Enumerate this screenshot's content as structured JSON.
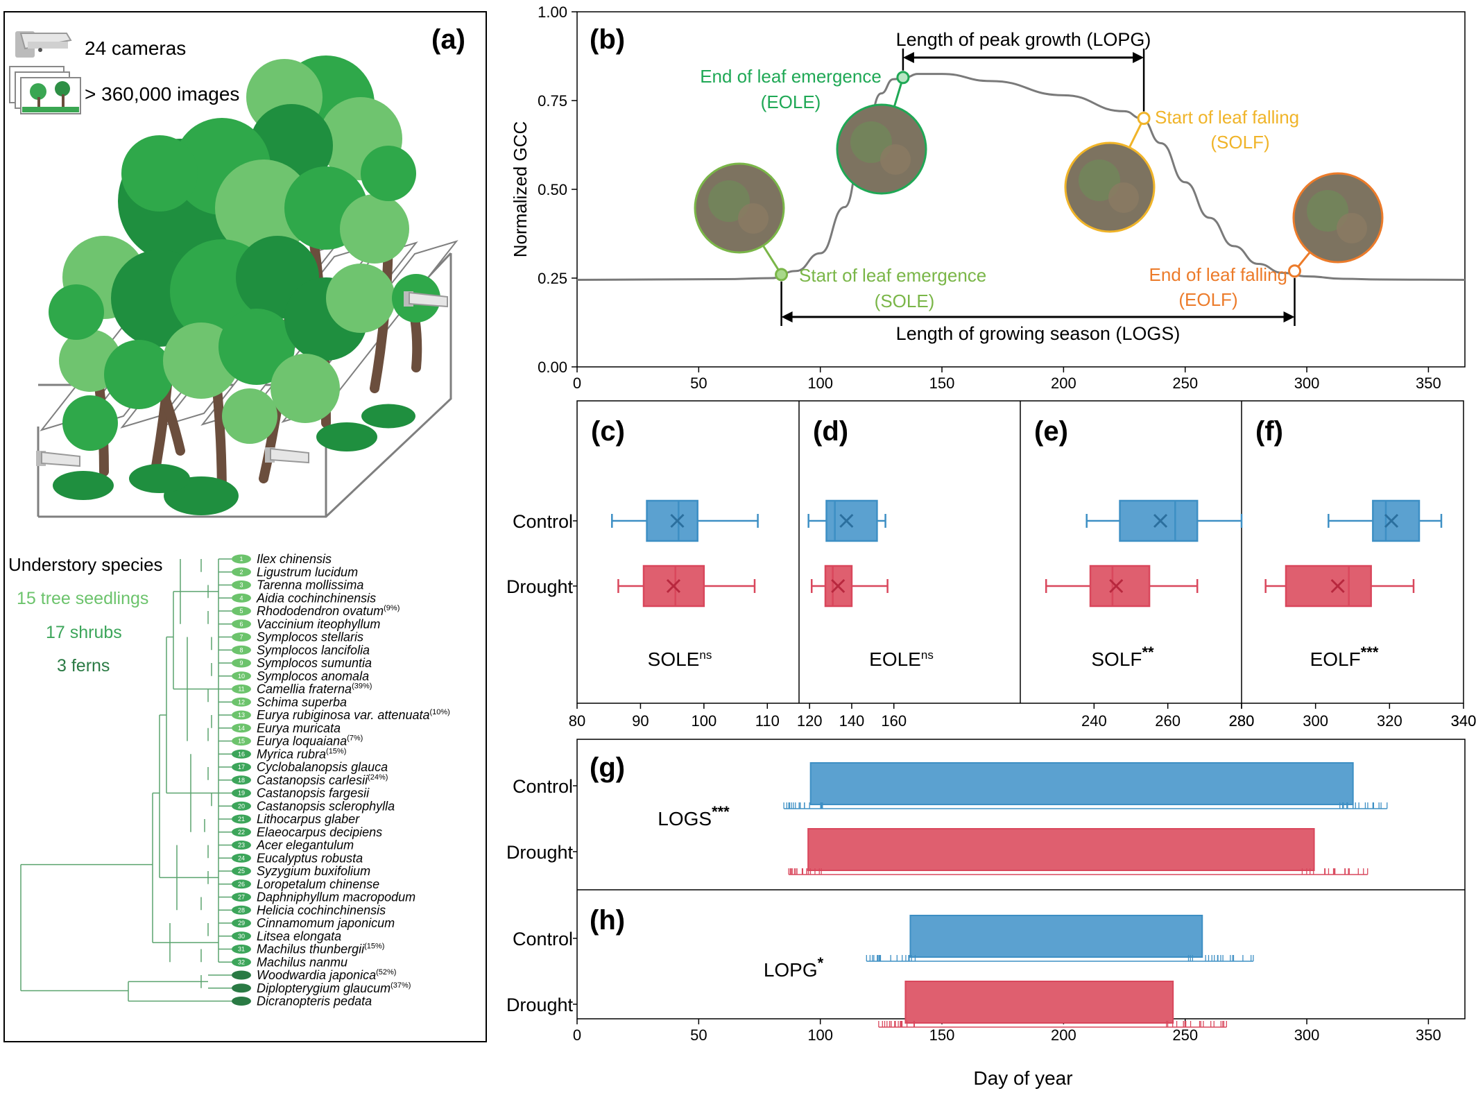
{
  "panel_a": {
    "label": "(a)",
    "cameras_text": "24 cameras",
    "images_text": "> 360,000 images",
    "understory_title": "Understory species",
    "group_trees": "15 tree seedlings",
    "group_shrubs": "17 shrubs",
    "group_ferns": "3 ferns",
    "colors": {
      "tree": "#6cc36c",
      "shrub": "#3ca55a",
      "fern": "#2a7a44",
      "branch": "#5aa36e",
      "leaf_dark": "#1f8f3f",
      "leaf_mid": "#2fa84a",
      "leaf_light": "#6fc46f",
      "trunk": "#6b4e3d"
    },
    "species": [
      {
        "n": "1",
        "name": "Ilex chinensis",
        "pct": ""
      },
      {
        "n": "2",
        "name": "Ligustrum lucidum",
        "pct": ""
      },
      {
        "n": "3",
        "name": "Tarenna mollissima",
        "pct": ""
      },
      {
        "n": "4",
        "name": "Aidia cochinchinensis",
        "pct": ""
      },
      {
        "n": "5",
        "name": "Rhododendron ovatum",
        "pct": "(9%)"
      },
      {
        "n": "6",
        "name": "Vaccinium iteophyllum",
        "pct": ""
      },
      {
        "n": "7",
        "name": "Symplocos stellaris",
        "pct": ""
      },
      {
        "n": "8",
        "name": "Symplocos lancifolia",
        "pct": ""
      },
      {
        "n": "9",
        "name": "Symplocos sumuntia",
        "pct": ""
      },
      {
        "n": "10",
        "name": "Symplocos anomala",
        "pct": ""
      },
      {
        "n": "11",
        "name": "Camellia fraterna",
        "pct": "(39%)"
      },
      {
        "n": "12",
        "name": "Schima superba",
        "pct": ""
      },
      {
        "n": "13",
        "name": "Eurya rubiginosa var. attenuata",
        "pct": "(10%)"
      },
      {
        "n": "14",
        "name": "Eurya muricata",
        "pct": ""
      },
      {
        "n": "15",
        "name": "Eurya loquaiana",
        "pct": "(7%)"
      },
      {
        "n": "16",
        "name": "Myrica rubra",
        "pct": "(15%)"
      },
      {
        "n": "17",
        "name": "Cyclobalanopsis glauca",
        "pct": ""
      },
      {
        "n": "18",
        "name": "Castanopsis carlesii",
        "pct": "(24%)"
      },
      {
        "n": "19",
        "name": "Castanopsis fargesii",
        "pct": ""
      },
      {
        "n": "20",
        "name": "Castanopsis sclerophylla",
        "pct": ""
      },
      {
        "n": "21",
        "name": "Lithocarpus glaber",
        "pct": ""
      },
      {
        "n": "22",
        "name": "Elaeocarpus decipiens",
        "pct": ""
      },
      {
        "n": "23",
        "name": "Acer elegantulum",
        "pct": ""
      },
      {
        "n": "24",
        "name": "Eucalyptus robusta",
        "pct": ""
      },
      {
        "n": "25",
        "name": "Syzygium buxifolium",
        "pct": ""
      },
      {
        "n": "26",
        "name": "Loropetalum chinense",
        "pct": ""
      },
      {
        "n": "27",
        "name": "Daphniphyllum macropodum",
        "pct": ""
      },
      {
        "n": "28",
        "name": "Helicia cochinchinensis",
        "pct": ""
      },
      {
        "n": "29",
        "name": "Cinnamomum japonicum",
        "pct": ""
      },
      {
        "n": "30",
        "name": "Litsea elongata",
        "pct": ""
      },
      {
        "n": "31",
        "name": "Machilus thunbergii",
        "pct": "(15%)"
      },
      {
        "n": "32",
        "name": "Machilus nanmu",
        "pct": ""
      },
      {
        "n": "",
        "name": "Woodwardia japonica",
        "pct": "(52%)"
      },
      {
        "n": "",
        "name": "Diplopterygium glaucum",
        "pct": "(37%)"
      },
      {
        "n": "",
        "name": "Dicranopteris pedata",
        "pct": ""
      }
    ]
  },
  "chart_data": [
    {
      "panel": "(b)",
      "type": "line",
      "ylabel": "Normalized GCC",
      "xlim": [
        0,
        365
      ],
      "ylim": [
        0,
        1
      ],
      "xticks": [
        0,
        50,
        100,
        150,
        200,
        250,
        300,
        350
      ],
      "yticks": [
        "0.00",
        "0.25",
        "0.50",
        "0.75",
        "1.00"
      ],
      "curve": {
        "x": [
          0,
          60,
          80,
          90,
          100,
          110,
          118,
          125,
          130,
          135,
          140,
          150,
          170,
          200,
          225,
          232,
          240,
          250,
          260,
          270,
          280,
          290,
          300,
          315,
          330,
          365
        ],
        "y": [
          0.245,
          0.247,
          0.25,
          0.27,
          0.32,
          0.45,
          0.64,
          0.77,
          0.81,
          0.815,
          0.825,
          0.825,
          0.805,
          0.765,
          0.72,
          0.7,
          0.63,
          0.52,
          0.42,
          0.34,
          0.29,
          0.265,
          0.255,
          0.248,
          0.246,
          0.245
        ]
      },
      "points": [
        {
          "key": "sole",
          "x": 84,
          "y": 0.26,
          "label1": "Start of leaf emergence",
          "label2": "(SOLE)",
          "color": "#7ab648"
        },
        {
          "key": "eole",
          "x": 134,
          "y": 0.815,
          "label1": "End of leaf emergence",
          "label2": "(EOLE)",
          "color": "#1fa855"
        },
        {
          "key": "solf",
          "x": 233,
          "y": 0.7,
          "label1": "Start of leaf falling",
          "label2": "(SOLF)",
          "color": "#f0b429"
        },
        {
          "key": "eolf",
          "x": 295,
          "y": 0.27,
          "label1": "End of leaf falling",
          "label2": "(EOLF)",
          "color": "#ec7b2a"
        }
      ],
      "lopg_label": "Length of peak growth (LOPG)",
      "logs_label": "Length of growing season (LOGS)"
    },
    {
      "panel": "(c)",
      "type": "box",
      "metric_label": "SOLE",
      "sig": "ns",
      "sig_style": "sup-small",
      "xlim": [
        80,
        115
      ],
      "xticks": [
        80,
        90,
        100,
        110
      ],
      "series": [
        {
          "name": "Control",
          "whisker_lo": 85.5,
          "q1": 91,
          "median": 96,
          "q3": 99,
          "whisker_hi": 108.5,
          "mean": 95.8
        },
        {
          "name": "Drought",
          "whisker_lo": 86.5,
          "q1": 90.5,
          "median": 95.5,
          "q3": 100,
          "whisker_hi": 108,
          "mean": 95.2
        }
      ]
    },
    {
      "panel": "(d)",
      "type": "box",
      "metric_label": "EOLE",
      "sig": "ns",
      "sig_style": "sup-small",
      "xlim": [
        115,
        220
      ],
      "xticks": [
        120,
        140,
        160
      ],
      "series": [
        {
          "name": "Control",
          "whisker_lo": 119.5,
          "q1": 128,
          "median": 132,
          "q3": 152,
          "whisker_hi": 156,
          "mean": 137.5
        },
        {
          "name": "Drought",
          "whisker_lo": 121,
          "q1": 127.5,
          "median": 131,
          "q3": 140,
          "whisker_hi": 157,
          "mean": 133.5
        }
      ]
    },
    {
      "panel": "(e)",
      "type": "box",
      "metric_label": "SOLF",
      "sig": "**",
      "sig_style": "stars",
      "xlim": [
        220,
        280
      ],
      "xticks": [
        240,
        260,
        280
      ],
      "series": [
        {
          "name": "Control",
          "whisker_lo": 238,
          "q1": 247,
          "median": 262,
          "q3": 268,
          "whisker_hi": 280,
          "mean": 258
        },
        {
          "name": "Drought",
          "whisker_lo": 227,
          "q1": 239,
          "median": 245,
          "q3": 255,
          "whisker_hi": 268,
          "mean": 246
        }
      ]
    },
    {
      "panel": "(f)",
      "type": "box",
      "metric_label": "EOLF",
      "sig": "***",
      "sig_style": "stars",
      "xlim": [
        280,
        340
      ],
      "xticks": [
        280,
        300,
        320,
        340
      ],
      "series": [
        {
          "name": "Control",
          "whisker_lo": 303.5,
          "q1": 315.5,
          "median": 319,
          "q3": 328,
          "whisker_hi": 334,
          "mean": 320.5
        },
        {
          "name": "Drought",
          "whisker_lo": 286.5,
          "q1": 292,
          "median": 309,
          "q3": 315,
          "whisker_hi": 326.5,
          "mean": 306
        }
      ]
    },
    {
      "panel": "(g)",
      "type": "bar",
      "metric_label": "LOGS",
      "sig": "***",
      "series": [
        {
          "name": "Control",
          "start": 96,
          "end": 319,
          "rug_min": 85,
          "rug_max": 333
        },
        {
          "name": "Drought",
          "start": 95,
          "end": 303,
          "rug_min": 87,
          "rug_max": 325
        }
      ]
    },
    {
      "panel": "(h)",
      "type": "bar",
      "metric_label": "LOPG",
      "sig": "*",
      "series": [
        {
          "name": "Control",
          "start": 137,
          "end": 257,
          "rug_min": 119,
          "rug_max": 278
        },
        {
          "name": "Drought",
          "start": 135,
          "end": 245,
          "rug_min": 124,
          "rug_max": 267
        }
      ]
    }
  ],
  "shared_axis": {
    "xlim": [
      0,
      365
    ],
    "xticks": [
      0,
      50,
      100,
      150,
      200,
      250,
      300,
      350
    ],
    "xlabel": "Day of year"
  },
  "groups": [
    "Control",
    "Drought"
  ],
  "colors": {
    "control": "#3d8fc4",
    "drought": "#d9475c",
    "control_fill": "#5ba1d0",
    "drought_fill": "#df5f6f",
    "curve": "#7a7a7a",
    "axis": "#000000"
  }
}
